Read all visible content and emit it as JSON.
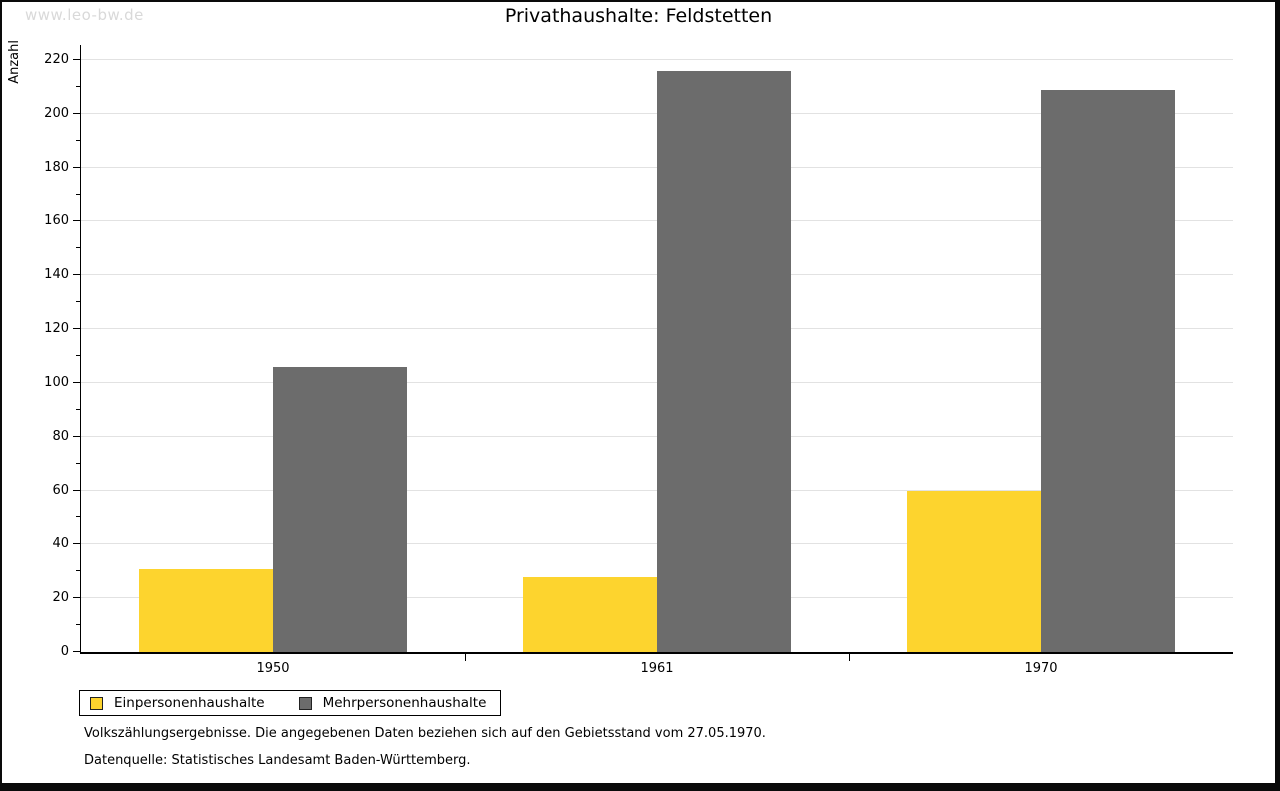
{
  "watermark": "www.leo-bw.de",
  "title": "Privathaushalte: Feldstetten",
  "chart_data": {
    "type": "bar",
    "title": "Privathaushalte: Feldstetten",
    "categories": [
      "1950",
      "1961",
      "1970"
    ],
    "series": [
      {
        "name": "Einpersonenhaushalte",
        "color": "#fdd42e",
        "values": [
          31,
          28,
          60
        ]
      },
      {
        "name": "Mehrpersonenhaushalte",
        "color": "#6c6c6c",
        "values": [
          106,
          216,
          209
        ]
      }
    ],
    "xlabel": "",
    "ylabel": "Anzahl",
    "ylim": [
      0,
      220
    ],
    "ytick_step": 20,
    "yminor_step": 10,
    "grid": true,
    "gridline_color": "#e2e2e2",
    "legend_position": "bottom-left"
  },
  "footer": {
    "line1": "Volkszählungsergebnisse. Die angegebenen Daten beziehen sich auf den Gebietsstand vom 27.05.1970.",
    "line2": "Datenquelle: Statistisches Landesamt Baden-Württemberg."
  }
}
